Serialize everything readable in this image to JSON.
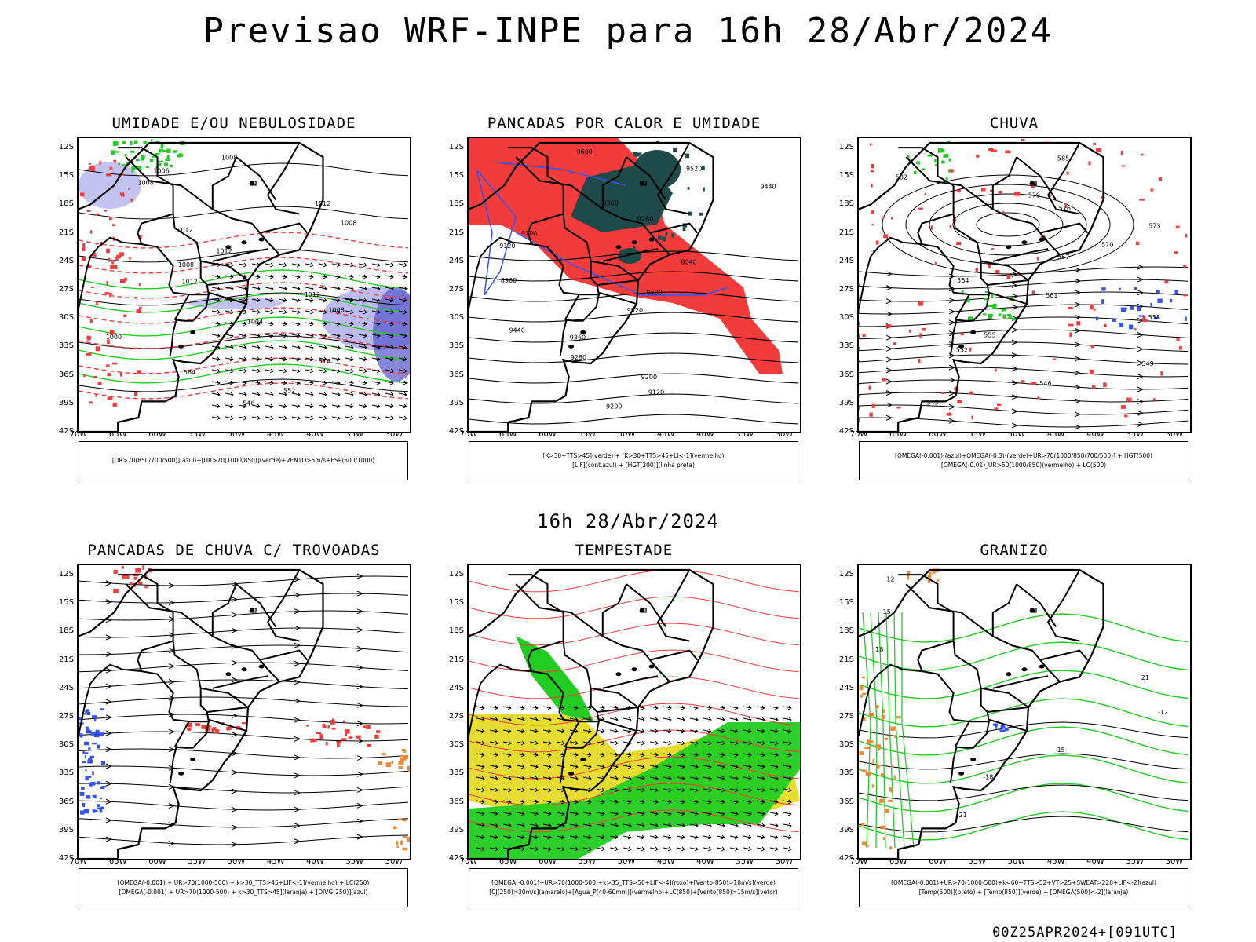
{
  "title": "Previsao WRF-INPE  para 16h 28/Abr/2024",
  "middle_title": "16h 28/Abr/2024",
  "footer": "00Z25APR2024+[091UTC]",
  "lat_labels": [
    "12S",
    "15S",
    "18S",
    "21S",
    "24S",
    "27S",
    "30S",
    "33S",
    "36S",
    "39S",
    "42S"
  ],
  "lon_labels": [
    "70W",
    "65W",
    "60W",
    "55W",
    "50W",
    "45W",
    "40W",
    "35W",
    "30W"
  ],
  "colors": {
    "red": "#f23c3c",
    "green": "#22cc22",
    "blue": "#3355ee",
    "lavender": "#b4b4ee",
    "darkteal": "#1f4a4a",
    "yellow": "#e6dc32",
    "orange": "#ee8833"
  },
  "panels": [
    {
      "id": "umidade",
      "title": "UMIDADE E/OU NEBULOSIDADE",
      "legend": [
        "[UR>70(850/700/500)](azul)+[UR>70(1000/850)](verde)+VENTO>5m/s+ESP(500/1000)"
      ],
      "labels": [
        "1008",
        "1006",
        "1008",
        "1012",
        "1008",
        "1012",
        "1012",
        "1008",
        "1012",
        "1012",
        "1008",
        "1004",
        "1000",
        "576",
        "564",
        "552",
        "546"
      ]
    },
    {
      "id": "pancadas-calor",
      "title": "PANCADAS POR CALOR E UMIDADE",
      "legend": [
        "[K>30+TTS>45](verde) + [K>30+TTS>45+LI<-1](vermelho)",
        "[LIF](cont.azul) + [HGT(300)](linha preta)"
      ],
      "labels": [
        "9600",
        "9520",
        "9440",
        "9360",
        "9280",
        "9200",
        "9120",
        "9040",
        "8960",
        "9600",
        "9520",
        "9440",
        "9360",
        "9280",
        "9200",
        "9120",
        "9200"
      ]
    },
    {
      "id": "chuva",
      "title": "CHUVA",
      "legend": [
        "[OMEGA(-0.001)-(azul)+OMEGA(-0.3)-(verde)+UR>70(1000/850/700/500)] + HGT(500)",
        "[OMEGA(-0.01)_UR>50(1000/850)(vermelho) + LC(500)"
      ],
      "labels": [
        "585",
        "582",
        "579",
        "576",
        "573",
        "570",
        "567",
        "564",
        "561",
        "558",
        "555",
        "552",
        "549",
        "546",
        "543"
      ]
    },
    {
      "id": "pancadas-trovoadas",
      "title": "PANCADAS DE CHUVA C/ TROVOADAS",
      "legend": [
        "[OMEGA(-0.001) + UR>70(1000-500) + k>30_TTS>45+LIF<-1](vermelho) + LC(250)",
        "[OMEGA(-0.001) + UR>70(1000-500) + k>30_TTS>45](laranja) + [DIVG(250)](azul)"
      ],
      "labels": []
    },
    {
      "id": "tempestade",
      "title": "TEMPESTADE",
      "legend": [
        "[OMEGA(-0.001)+UR>70(1000-500)+k>35_TTS>50+LIF<-4](roxo)+[Vento(850)>10m/s](verde)",
        "[CJ(250)>30m/s](amarelo)+[Agua_P(40-60mm)](vermelho)+LC(850)+[Vento(850)>15m/s](vetor)"
      ],
      "labels": []
    },
    {
      "id": "granizo",
      "title": "GRANIZO",
      "legend": [
        "[OMEGA(-0.001)+UR>70(1000-500)+k<60+TTS>52+VT>25+SWEAT>220+LIF<-2](azul)",
        "[Temp(500)](preto) + [Temp(850)](verde) + [OMEGA(500)<-2](laranja)"
      ],
      "labels": [
        "12",
        "15",
        "18",
        "21",
        "-12",
        "-15",
        "-18",
        "-21"
      ]
    }
  ]
}
